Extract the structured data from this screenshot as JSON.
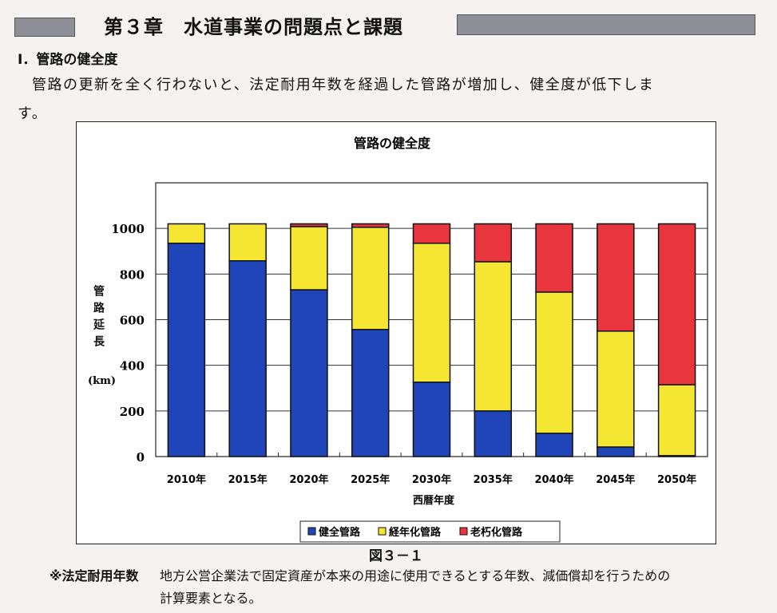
{
  "header": {
    "title": "第３章　水道事業の問題点と課題"
  },
  "section": {
    "title": "Ⅰ．管路の健全度"
  },
  "paragraph": {
    "line1": "管路の更新を全く行わないと、法定耐用年数を経過した管路が増加し、健全度が低下しま",
    "line2": "す。"
  },
  "chart_data": {
    "type": "bar",
    "stacked": true,
    "title": "管路の健全度",
    "xlabel": "西暦年度",
    "ylabel": "管路延長",
    "yunit": "(km)",
    "ylim": [
      0,
      1200
    ],
    "yticks": [
      0,
      200,
      400,
      600,
      800,
      1000
    ],
    "grid": true,
    "legend_position": "bottom",
    "categories": [
      "2010年",
      "2015年",
      "2020年",
      "2025年",
      "2030年",
      "2035年",
      "2040年",
      "2045年",
      "2050年"
    ],
    "series": [
      {
        "name": "健全管路",
        "color": "#1f45b8",
        "values": [
          935,
          858,
          731,
          557,
          326,
          200,
          102,
          42,
          4
        ]
      },
      {
        "name": "経年化管路",
        "color": "#f5e634",
        "values": [
          85,
          162,
          277,
          448,
          609,
          654,
          619,
          508,
          311
        ]
      },
      {
        "name": "老朽化管路",
        "color": "#e8353e",
        "values": [
          0,
          0,
          12,
          15,
          85,
          166,
          299,
          470,
          705
        ]
      }
    ]
  },
  "caption": "図３－１",
  "note": {
    "label": "※法定耐用年数",
    "line1": "地方公営企業法で固定資産が本来の用途に使用できるとする年数、減価償却を行うための",
    "line2": "計算要素となる。"
  }
}
